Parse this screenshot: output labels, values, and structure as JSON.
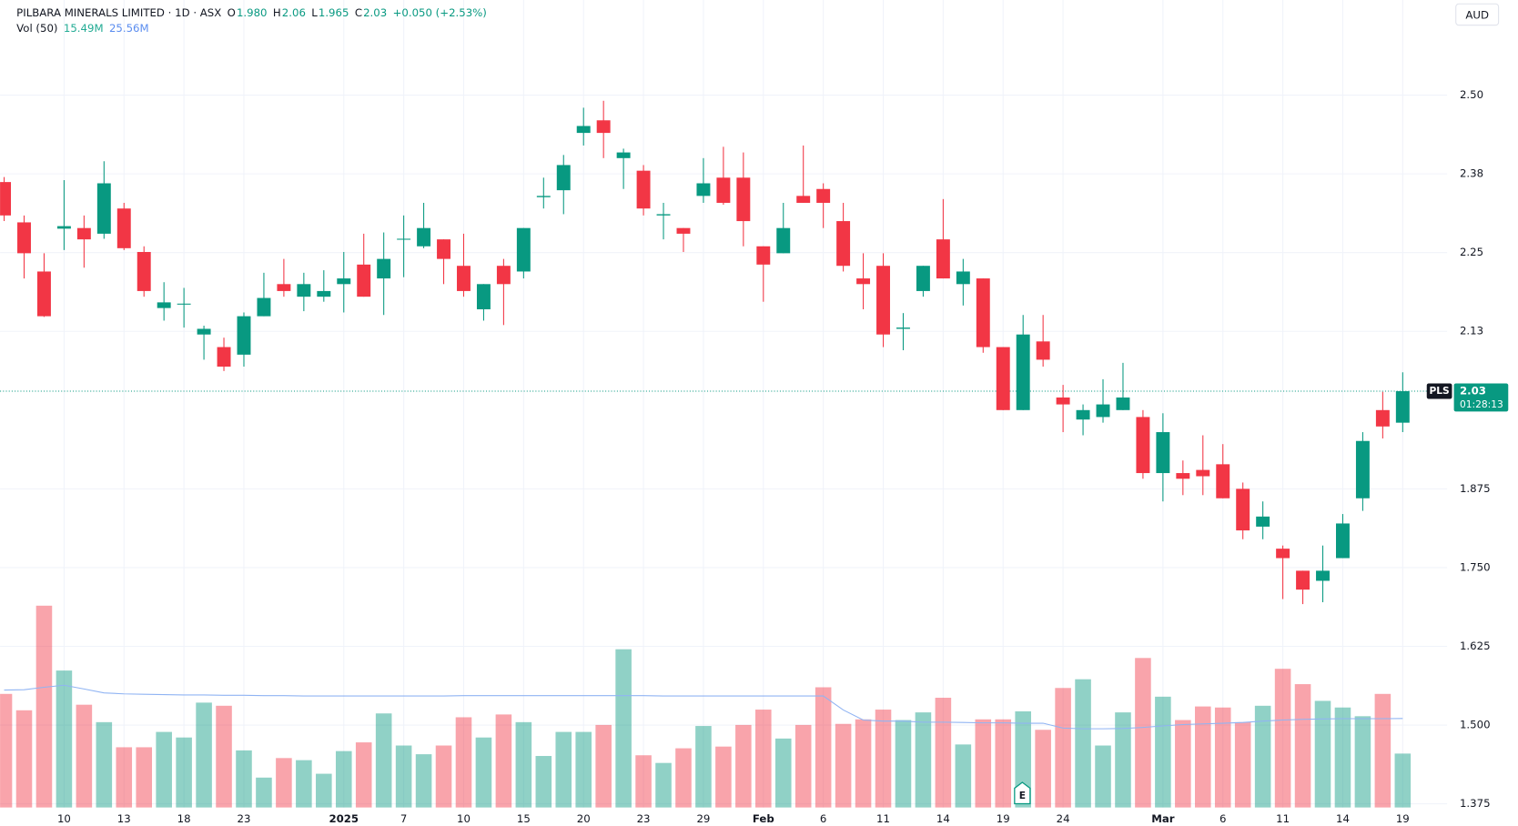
{
  "chart_data": {
    "type": "candlestick",
    "title": "PILBARA MINERALS LIMITED · 1D · ASX",
    "ohlc_legend": [
      {
        "label": "O",
        "value": "1.980"
      },
      {
        "label": "H",
        "value": "2.06"
      },
      {
        "label": "L",
        "value": "1.965"
      },
      {
        "label": "C",
        "value": "2.03"
      }
    ],
    "change": "+0.050 (+2.53%)",
    "volume_legend": {
      "label": "Vol (50)",
      "values": [
        "15.49M",
        "25.56M"
      ]
    },
    "currency": "AUD",
    "symbol": "PLS",
    "last_price_label": "2.03",
    "countdown": "01:28:13",
    "earnings_label": "E",
    "up_color": "#089981",
    "down_color": "#f23645",
    "volume_ma_color": "#90b4f3",
    "grid": true,
    "categories": [
      null,
      null,
      null,
      "10",
      null,
      null,
      "13",
      null,
      null,
      "18",
      null,
      null,
      "23",
      null,
      null,
      null,
      null,
      "2025",
      null,
      null,
      "7",
      null,
      null,
      "10",
      null,
      null,
      "15",
      null,
      null,
      "20",
      null,
      null,
      "23",
      null,
      null,
      "29",
      null,
      null,
      "Feb",
      null,
      null,
      "6",
      null,
      null,
      "11",
      null,
      null,
      "14",
      null,
      null,
      "19",
      null,
      null,
      "24",
      null,
      null,
      null,
      null,
      "Mar",
      null,
      null,
      "6",
      null,
      null,
      "11",
      null,
      null,
      "14",
      null,
      null,
      "19"
    ],
    "open": [
      2.362,
      2.298,
      2.22,
      2.288,
      2.289,
      2.28,
      2.32,
      2.251,
      2.162,
      2.168,
      2.12,
      2.1,
      2.088,
      2.149,
      2.2,
      2.18,
      2.18,
      2.2,
      2.231,
      2.209,
      2.271,
      2.26,
      2.271,
      2.229,
      2.16,
      2.229,
      2.22,
      2.338,
      2.349,
      2.44,
      2.46,
      2.4,
      2.38,
      2.309,
      2.289,
      2.34,
      2.369,
      2.369,
      2.26,
      2.249,
      2.34,
      2.351,
      2.3,
      2.209,
      2.229,
      2.129,
      2.189,
      2.271,
      2.2,
      2.209,
      2.1,
      2.0,
      2.109,
      2.02,
      1.985,
      1.989,
      2.0,
      1.989,
      1.9,
      1.9,
      1.905,
      1.914,
      1.875,
      1.815,
      1.78,
      1.745,
      1.729,
      1.765,
      1.86,
      2.0,
      1.98
    ],
    "high": [
      2.37,
      2.309,
      2.249,
      2.365,
      2.309,
      2.395,
      2.329,
      2.26,
      2.203,
      2.194,
      2.134,
      2.115,
      2.155,
      2.218,
      2.24,
      2.218,
      2.222,
      2.251,
      2.28,
      2.282,
      2.309,
      2.329,
      2.271,
      2.28,
      2.2,
      2.24,
      2.289,
      2.369,
      2.405,
      2.48,
      2.491,
      2.415,
      2.389,
      2.329,
      2.289,
      2.4,
      2.418,
      2.409,
      2.26,
      2.329,
      2.42,
      2.36,
      2.329,
      2.249,
      2.249,
      2.154,
      2.229,
      2.335,
      2.24,
      2.209,
      2.1,
      2.151,
      2.151,
      2.04,
      2.009,
      2.049,
      2.075,
      2.0,
      1.995,
      1.92,
      1.96,
      1.946,
      1.885,
      1.855,
      1.785,
      1.745,
      1.785,
      1.835,
      1.965,
      2.029,
      2.06
    ],
    "low": [
      2.3,
      2.209,
      2.148,
      2.254,
      2.226,
      2.272,
      2.254,
      2.18,
      2.142,
      2.131,
      2.08,
      2.062,
      2.069,
      2.149,
      2.18,
      2.157,
      2.172,
      2.155,
      2.18,
      2.151,
      2.211,
      2.257,
      2.2,
      2.18,
      2.142,
      2.135,
      2.209,
      2.32,
      2.311,
      2.42,
      2.4,
      2.351,
      2.309,
      2.271,
      2.251,
      2.329,
      2.326,
      2.26,
      2.172,
      2.249,
      2.329,
      2.289,
      2.22,
      2.16,
      2.1,
      2.095,
      2.18,
      2.209,
      2.166,
      2.091,
      2.0,
      2.0,
      2.069,
      1.965,
      1.96,
      1.98,
      2.0,
      1.891,
      1.855,
      1.865,
      1.865,
      1.86,
      1.795,
      1.795,
      1.7,
      1.692,
      1.695,
      1.765,
      1.84,
      1.955,
      1.965
    ],
    "close": [
      2.309,
      2.249,
      2.149,
      2.292,
      2.271,
      2.36,
      2.257,
      2.189,
      2.171,
      2.169,
      2.129,
      2.069,
      2.149,
      2.178,
      2.189,
      2.2,
      2.189,
      2.209,
      2.18,
      2.24,
      2.272,
      2.289,
      2.24,
      2.189,
      2.2,
      2.2,
      2.289,
      2.34,
      2.389,
      2.451,
      2.44,
      2.409,
      2.32,
      2.311,
      2.28,
      2.36,
      2.329,
      2.3,
      2.231,
      2.289,
      2.329,
      2.329,
      2.229,
      2.2,
      2.12,
      2.131,
      2.229,
      2.209,
      2.22,
      2.1,
      2.0,
      2.12,
      2.08,
      2.009,
      2.0,
      2.009,
      2.02,
      1.9,
      1.965,
      1.891,
      1.895,
      1.86,
      1.809,
      1.831,
      1.765,
      1.715,
      1.745,
      1.82,
      1.951,
      1.974,
      2.03
    ],
    "volume": [
      32.6,
      27.9,
      57.9,
      39.3,
      29.5,
      24.5,
      17.3,
      17.3,
      21.7,
      20.1,
      30.1,
      29.2,
      16.4,
      8.6,
      14.2,
      13.6,
      9.7,
      16.2,
      18.7,
      27.0,
      17.8,
      15.3,
      17.8,
      25.9,
      20.1,
      26.7,
      24.5,
      14.8,
      21.7,
      21.7,
      23.7,
      45.4,
      15.0,
      12.8,
      17.0,
      23.4,
      17.5,
      23.7,
      28.1,
      19.8,
      23.7,
      34.5,
      24.0,
      25.3,
      28.1,
      25.1,
      27.3,
      31.5,
      18.1,
      25.3,
      25.3,
      27.6,
      22.3,
      34.3,
      36.8,
      17.8,
      27.3,
      42.9,
      31.8,
      25.1,
      29.0,
      28.7,
      24.5,
      29.2,
      39.8,
      35.4,
      30.6,
      28.7,
      26.2,
      32.6,
      15.49
    ],
    "volume_ma": [
      33.7,
      33.8,
      34.5,
      35.1,
      34.0,
      32.9,
      32.6,
      32.5,
      32.4,
      32.3,
      32.3,
      32.2,
      32.2,
      32.1,
      32.1,
      32.0,
      32.0,
      32.0,
      32.0,
      32.0,
      32.0,
      32.0,
      32.0,
      32.1,
      32.1,
      32.1,
      32.1,
      32.1,
      32.1,
      32.1,
      32.1,
      32.1,
      32.1,
      32.0,
      32.0,
      32.0,
      32.0,
      32.0,
      32.0,
      32.0,
      32.0,
      32.0,
      28.0,
      25.1,
      24.8,
      24.8,
      24.5,
      24.5,
      24.4,
      24.3,
      24.3,
      24.2,
      24.2,
      22.8,
      22.6,
      22.6,
      22.7,
      23.0,
      23.4,
      23.8,
      24.0,
      24.2,
      24.4,
      24.8,
      25.1,
      25.3,
      25.4,
      25.5,
      25.5,
      25.5,
      25.56
    ],
    "ylim": [
      1.369,
      2.651
    ],
    "yticks": [
      1.375,
      {
        "value": 1.5,
        "label": "1.500"
      },
      1.625,
      {
        "value": 1.75,
        "label": "1.750"
      },
      1.875,
      {
        "value": 2.125,
        "label": "2.13"
      },
      2.25,
      {
        "value": 2.375,
        "label": "2.38"
      },
      {
        "value": 2.5,
        "label": "2.50"
      }
    ]
  }
}
